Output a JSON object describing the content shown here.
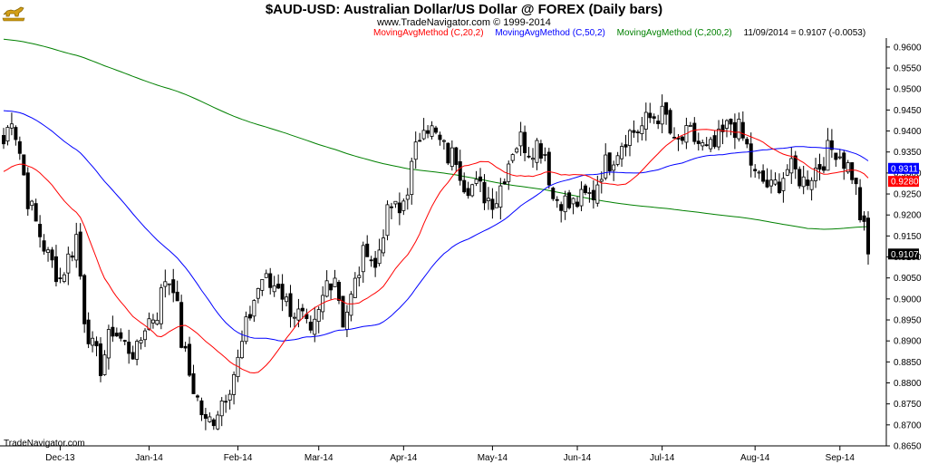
{
  "chart_data": {
    "type": "candlestick",
    "title": "$AUD-USD:  Australian Dollar/US Dollar @ FOREX  (Daily bars)",
    "subtitle": "www.TradeNavigator.com © 1999-2014",
    "watermark": "TradeNavigator.com",
    "logo_icon": "gold-bull-logo-icon",
    "ylim": [
      0.865,
      0.963
    ],
    "y_ticks": [
      "0.9600",
      "0.9550",
      "0.9500",
      "0.9450",
      "0.9400",
      "0.9350",
      "0.9300",
      "0.9250",
      "0.9200",
      "0.9150",
      "0.9100",
      "0.9050",
      "0.9000",
      "0.8950",
      "0.8900",
      "0.8850",
      "0.8800",
      "0.8750",
      "0.8700",
      "0.8650"
    ],
    "x_ticks": [
      {
        "label": "Dec-13",
        "index": 14
      },
      {
        "label": "Jan-14",
        "index": 36
      },
      {
        "label": "Feb-14",
        "index": 58
      },
      {
        "label": "Mar-14",
        "index": 78
      },
      {
        "label": "Apr-14",
        "index": 99
      },
      {
        "label": "May-14",
        "index": 121
      },
      {
        "label": "Jun-14",
        "index": 142
      },
      {
        "label": "Jul-14",
        "index": 163
      },
      {
        "label": "Aug-14",
        "index": 186
      },
      {
        "label": "Sep-14",
        "index": 207
      }
    ],
    "last_bar_label": "11/09/2014 = 0.9107 (-0.0053)",
    "price_flags": [
      {
        "value": 0.9311,
        "label": "0.9311",
        "color": "#0000ff",
        "text_color": "#ffffff"
      },
      {
        "value": 0.928,
        "label": "0.9280",
        "color": "#ff0000",
        "text_color": "#ffffff"
      },
      {
        "value": 0.9107,
        "label": "0.9107",
        "color": "#000000",
        "text_color": "#ffffff"
      }
    ],
    "series": [
      {
        "name": "MovingAvgMethod (C,20,2)",
        "color": "#ff0000",
        "key": "ma20"
      },
      {
        "name": "MovingAvgMethod (C,50,2)",
        "color": "#0000ff",
        "key": "ma50"
      },
      {
        "name": "MovingAvgMethod (C,200,2)",
        "color": "#008000",
        "key": "ma200"
      }
    ],
    "bar_count": 215,
    "anchors": [
      [
        0,
        0.937
      ],
      [
        2,
        0.944
      ],
      [
        4,
        0.935
      ],
      [
        6,
        0.924
      ],
      [
        8,
        0.918
      ],
      [
        11,
        0.91
      ],
      [
        14,
        0.905
      ],
      [
        17,
        0.912
      ],
      [
        18,
        0.915
      ],
      [
        20,
        0.896
      ],
      [
        22,
        0.888
      ],
      [
        24,
        0.884
      ],
      [
        27,
        0.893
      ],
      [
        30,
        0.889
      ],
      [
        33,
        0.887
      ],
      [
        35,
        0.894
      ],
      [
        38,
        0.897
      ],
      [
        40,
        0.905
      ],
      [
        42,
        0.904
      ],
      [
        44,
        0.89
      ],
      [
        46,
        0.882
      ],
      [
        48,
        0.876
      ],
      [
        50,
        0.87
      ],
      [
        52,
        0.872
      ],
      [
        54,
        0.876
      ],
      [
        56,
        0.88
      ],
      [
        58,
        0.885
      ],
      [
        60,
        0.893
      ],
      [
        62,
        0.9
      ],
      [
        64,
        0.905
      ],
      [
        66,
        0.903
      ],
      [
        68,
        0.904
      ],
      [
        70,
        0.899
      ],
      [
        72,
        0.897
      ],
      [
        74,
        0.895
      ],
      [
        76,
        0.89
      ],
      [
        78,
        0.896
      ],
      [
        80,
        0.904
      ],
      [
        82,
        0.906
      ],
      [
        84,
        0.895
      ],
      [
        86,
        0.9
      ],
      [
        88,
        0.907
      ],
      [
        90,
        0.913
      ],
      [
        92,
        0.907
      ],
      [
        94,
        0.917
      ],
      [
        96,
        0.922
      ],
      [
        98,
        0.92
      ],
      [
        100,
        0.927
      ],
      [
        102,
        0.935
      ],
      [
        104,
        0.943
      ],
      [
        106,
        0.94
      ],
      [
        108,
        0.937
      ],
      [
        110,
        0.934
      ],
      [
        112,
        0.934
      ],
      [
        114,
        0.928
      ],
      [
        116,
        0.927
      ],
      [
        118,
        0.926
      ],
      [
        120,
        0.924
      ],
      [
        122,
        0.924
      ],
      [
        124,
        0.93
      ],
      [
        126,
        0.936
      ],
      [
        128,
        0.938
      ],
      [
        130,
        0.936
      ],
      [
        132,
        0.937
      ],
      [
        134,
        0.935
      ],
      [
        136,
        0.924
      ],
      [
        138,
        0.924
      ],
      [
        140,
        0.922
      ],
      [
        142,
        0.923
      ],
      [
        144,
        0.924
      ],
      [
        146,
        0.925
      ],
      [
        148,
        0.931
      ],
      [
        150,
        0.933
      ],
      [
        152,
        0.936
      ],
      [
        154,
        0.939
      ],
      [
        156,
        0.94
      ],
      [
        158,
        0.941
      ],
      [
        160,
        0.943
      ],
      [
        162,
        0.944
      ],
      [
        164,
        0.943
      ],
      [
        166,
        0.936
      ],
      [
        168,
        0.938
      ],
      [
        170,
        0.939
      ],
      [
        172,
        0.937
      ],
      [
        174,
        0.935
      ],
      [
        176,
        0.936
      ],
      [
        178,
        0.939
      ],
      [
        180,
        0.942
      ],
      [
        182,
        0.94
      ],
      [
        184,
        0.936
      ],
      [
        186,
        0.929
      ],
      [
        188,
        0.928
      ],
      [
        190,
        0.926
      ],
      [
        192,
        0.928
      ],
      [
        194,
        0.931
      ],
      [
        196,
        0.93
      ],
      [
        198,
        0.928
      ],
      [
        200,
        0.93
      ],
      [
        202,
        0.932
      ],
      [
        204,
        0.935
      ],
      [
        206,
        0.936
      ],
      [
        208,
        0.933
      ],
      [
        210,
        0.93
      ],
      [
        211,
        0.926
      ],
      [
        212,
        0.92
      ],
      [
        213,
        0.916
      ],
      [
        214,
        0.9107
      ]
    ]
  }
}
